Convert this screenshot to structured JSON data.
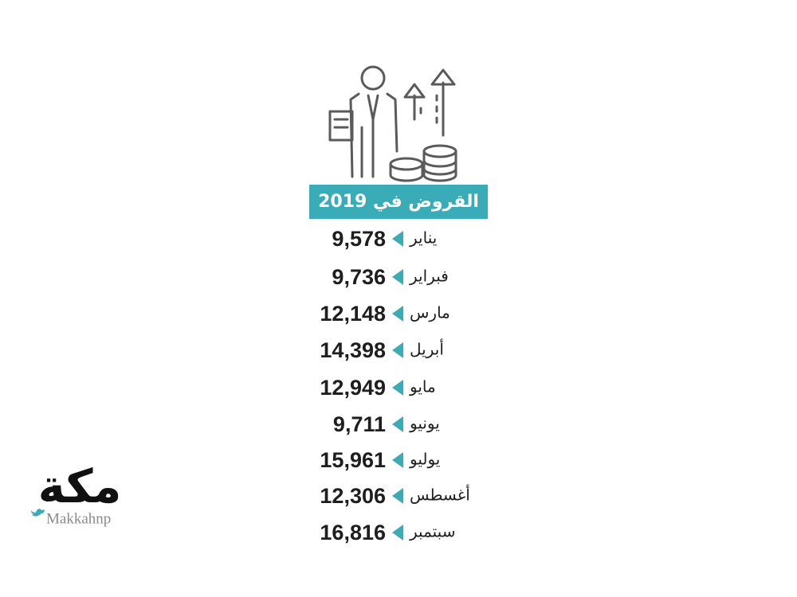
{
  "title": "القروض في 2019",
  "rows": [
    {
      "month": "يناير",
      "value": "9,578"
    },
    {
      "month": "فبراير",
      "value": "9,736"
    },
    {
      "month": "مارس",
      "value": "12,148"
    },
    {
      "month": "أبريل",
      "value": "14,398"
    },
    {
      "month": "مايو",
      "value": "12,949"
    },
    {
      "month": "يونيو",
      "value": "9,711"
    },
    {
      "month": "يوليو",
      "value": "15,961"
    },
    {
      "month": "أغسطس",
      "value": "12,306"
    },
    {
      "month": "سبتمبر",
      "value": "16,816"
    }
  ],
  "logo": {
    "name": "مكة",
    "handle": "Makkahnp"
  }
}
